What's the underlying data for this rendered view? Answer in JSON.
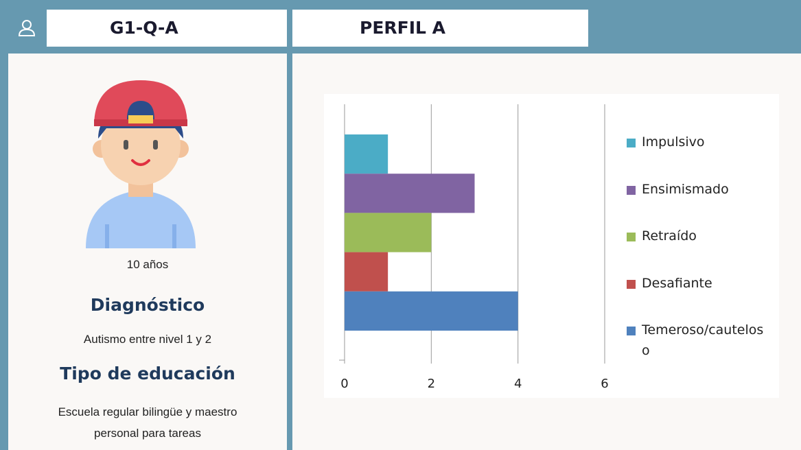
{
  "header": {
    "id": "G1-Q-A",
    "profile": "PERFIL A"
  },
  "student": {
    "age": "10 años",
    "diagnosis_title": "Diagnóstico",
    "diagnosis": "Autismo entre nivel 1 y 2",
    "education_title": "Tipo de educación",
    "education": "Escuela regular bilingüe y maestro personal para tareas"
  },
  "chart_data": {
    "type": "bar",
    "orientation": "horizontal",
    "categories": [
      null
    ],
    "series": [
      {
        "name": "Impulsivo",
        "color": "#4bacc6",
        "values": [
          1
        ]
      },
      {
        "name": "Ensimismado",
        "color": "#8064a2",
        "values": [
          3
        ]
      },
      {
        "name": "Retraído",
        "color": "#9bbb59",
        "values": [
          2
        ]
      },
      {
        "name": "Desafiante",
        "color": "#c0504d",
        "values": [
          1
        ]
      },
      {
        "name": "Temeroso/cauteloso",
        "color": "#4f81bd",
        "values": [
          4
        ]
      }
    ],
    "xlim": [
      0,
      6
    ],
    "xticks": [
      0,
      2,
      4,
      6
    ],
    "grid": true,
    "legend": "right"
  }
}
